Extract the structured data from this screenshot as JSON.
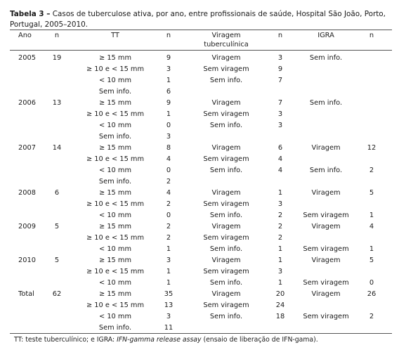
{
  "caption": {
    "label": "Tabela 3 –",
    "text": " Casos de tuberculose ativa, por ano, entre profissionais de saúde, Hospital São João, Porto, Portugal, 2005–2010."
  },
  "headers": {
    "ano": "Ano",
    "n1": "n",
    "tt": "TT",
    "n2": "n",
    "viragem_l1": "Viragem",
    "viragem_l2": "tuberculínica",
    "n3": "n",
    "igra": "IGRA",
    "n4": "n"
  },
  "rows": [
    {
      "ano": "2005",
      "n": "19",
      "tt": "≥ 15 mm",
      "n_tt": "9",
      "vir": "Viragem",
      "n_vir": "3",
      "igra": "Sem info.",
      "n_igra": ""
    },
    {
      "ano": "",
      "n": "",
      "tt": "≥ 10 e < 15 mm",
      "n_tt": "3",
      "vir": "Sem viragem",
      "n_vir": "9",
      "igra": "",
      "n_igra": ""
    },
    {
      "ano": "",
      "n": "",
      "tt": "< 10 mm",
      "n_tt": "1",
      "vir": "Sem info.",
      "n_vir": "7",
      "igra": "",
      "n_igra": ""
    },
    {
      "ano": "",
      "n": "",
      "tt": "Sem info.",
      "n_tt": "6",
      "vir": "",
      "n_vir": "",
      "igra": "",
      "n_igra": ""
    },
    {
      "ano": "2006",
      "n": "13",
      "tt": "≥ 15 mm",
      "n_tt": "9",
      "vir": "Viragem",
      "n_vir": "7",
      "igra": "Sem info.",
      "n_igra": ""
    },
    {
      "ano": "",
      "n": "",
      "tt": "≥ 10 e < 15 mm",
      "n_tt": "1",
      "vir": "Sem viragem",
      "n_vir": "3",
      "igra": "",
      "n_igra": ""
    },
    {
      "ano": "",
      "n": "",
      "tt": "< 10 mm",
      "n_tt": "0",
      "vir": "Sem info.",
      "n_vir": "3",
      "igra": "",
      "n_igra": ""
    },
    {
      "ano": "",
      "n": "",
      "tt": "Sem info.",
      "n_tt": "3",
      "vir": "",
      "n_vir": "",
      "igra": "",
      "n_igra": ""
    },
    {
      "ano": "2007",
      "n": "14",
      "tt": "≥ 15 mm",
      "n_tt": "8",
      "vir": "Viragem",
      "n_vir": "6",
      "igra": "Viragem",
      "n_igra": "12"
    },
    {
      "ano": "",
      "n": "",
      "tt": "≥ 10 e < 15 mm",
      "n_tt": "4",
      "vir": "Sem viragem",
      "n_vir": "4",
      "igra": "",
      "n_igra": ""
    },
    {
      "ano": "",
      "n": "",
      "tt": "< 10 mm",
      "n_tt": "0",
      "vir": "Sem info.",
      "n_vir": "4",
      "igra": "Sem info.",
      "n_igra": "2"
    },
    {
      "ano": "",
      "n": "",
      "tt": "Sem info.",
      "n_tt": "2",
      "vir": "",
      "n_vir": "",
      "igra": "",
      "n_igra": ""
    },
    {
      "ano": "2008",
      "n": "6",
      "tt": "≥ 15 mm",
      "n_tt": "4",
      "vir": "Viragem",
      "n_vir": "1",
      "igra": "Viragem",
      "n_igra": "5"
    },
    {
      "ano": "",
      "n": "",
      "tt": "≥ 10 e < 15 mm",
      "n_tt": "2",
      "vir": "Sem viragem",
      "n_vir": "3",
      "igra": "",
      "n_igra": ""
    },
    {
      "ano": "",
      "n": "",
      "tt": "< 10 mm",
      "n_tt": "0",
      "vir": "Sem info.",
      "n_vir": "2",
      "igra": "Sem viragem",
      "n_igra": "1"
    },
    {
      "ano": "2009",
      "n": "5",
      "tt": "≥ 15 mm",
      "n_tt": "2",
      "vir": "Viragem",
      "n_vir": "2",
      "igra": "Viragem",
      "n_igra": "4"
    },
    {
      "ano": "",
      "n": "",
      "tt": "≥ 10 e < 15 mm",
      "n_tt": "2",
      "vir": "Sem viragem",
      "n_vir": "2",
      "igra": "",
      "n_igra": ""
    },
    {
      "ano": "",
      "n": "",
      "tt": "< 10 mm",
      "n_tt": "1",
      "vir": "Sem info.",
      "n_vir": "1",
      "igra": "Sem viragem",
      "n_igra": "1"
    },
    {
      "ano": "2010",
      "n": "5",
      "tt": "≥ 15 mm",
      "n_tt": "3",
      "vir": "Viragem",
      "n_vir": "1",
      "igra": "Viragem",
      "n_igra": "5"
    },
    {
      "ano": "",
      "n": "",
      "tt": "≥ 10 e < 15 mm",
      "n_tt": "1",
      "vir": "Sem viragem",
      "n_vir": "3",
      "igra": "",
      "n_igra": ""
    },
    {
      "ano": "",
      "n": "",
      "tt": "< 10 mm",
      "n_tt": "1",
      "vir": "Sem info.",
      "n_vir": "1",
      "igra": "Sem viragem",
      "n_igra": "0"
    },
    {
      "ano": "Total",
      "n": "62",
      "tt": "≥ 15 mm",
      "n_tt": "35",
      "vir": "Viragem",
      "n_vir": "20",
      "igra": "Viragem",
      "n_igra": "26"
    },
    {
      "ano": "",
      "n": "",
      "tt": "≥ 10 e < 15 mm",
      "n_tt": "13",
      "vir": "Sem viragem",
      "n_vir": "24",
      "igra": "",
      "n_igra": ""
    },
    {
      "ano": "",
      "n": "",
      "tt": "< 10 mm",
      "n_tt": "3",
      "vir": "Sem info.",
      "n_vir": "18",
      "igra": "Sem viragem",
      "n_igra": "2"
    },
    {
      "ano": "",
      "n": "",
      "tt": "Sem info.",
      "n_tt": "11",
      "vir": "",
      "n_vir": "",
      "igra": "",
      "n_igra": ""
    }
  ],
  "footnote": {
    "prefix": "TT: teste tuberculínico; e IGRA: ",
    "italic": "IFN-gamma release assay",
    "suffix": " (ensaio de liberação de IFN-gama)."
  }
}
